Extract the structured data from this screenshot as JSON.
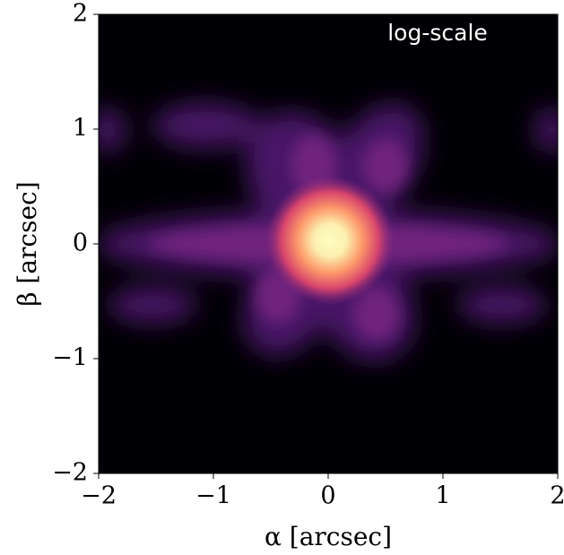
{
  "chart_data": {
    "type": "image",
    "xlabel": "α [arcsec]",
    "ylabel": "β [arcsec]",
    "annotation": "log-scale",
    "xlim": [
      -2,
      2
    ],
    "ylim": [
      -2,
      2
    ],
    "xticks": [
      {
        "value": -2,
        "label": "−2"
      },
      {
        "value": -1,
        "label": "−1"
      },
      0,
      1,
      2
    ],
    "yticks": [
      {
        "value": -2,
        "label": "−2"
      },
      {
        "value": -1,
        "label": "−1"
      },
      0,
      1,
      2
    ]
  }
}
